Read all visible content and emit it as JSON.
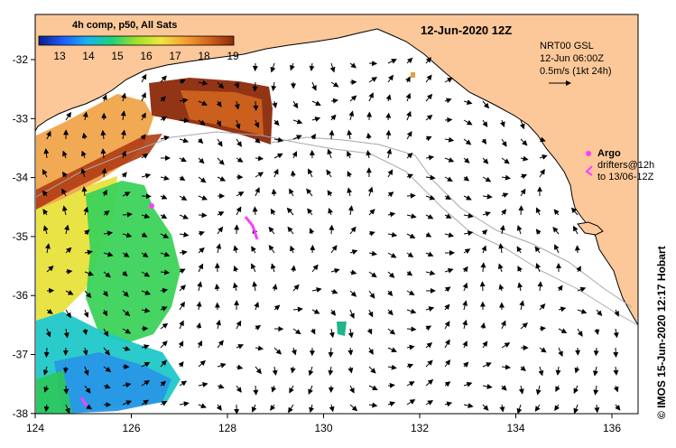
{
  "title": "12-Jun-2020 12Z",
  "legend": {
    "title": "4h comp, p50, All Sats",
    "ticks": [
      "13",
      "14",
      "15",
      "16",
      "17",
      "18",
      "19"
    ],
    "gradient": [
      "#08208c",
      "#1f5cff",
      "#18b4f0",
      "#1ed27a",
      "#9fe12a",
      "#f0e640",
      "#f5a030",
      "#d2641e",
      "#8c2a0a"
    ]
  },
  "currents": {
    "product": "NRT00 GSL",
    "time": "12-Jun 06:00Z",
    "scale_label": "0.5m/s (1kt 24h)"
  },
  "argo": {
    "label": "Argo",
    "drifters_line1": "drifters@12h",
    "drifters_line2": "to 13/06-12Z"
  },
  "axes": {
    "x_ticks": [
      "124",
      "126",
      "128",
      "130",
      "132",
      "134",
      "136"
    ],
    "y_ticks": [
      "-32",
      "-33",
      "-34",
      "-35",
      "-36",
      "-37",
      "-38"
    ]
  },
  "credit": "© IMOS 15-Jun-2020 12:17 Hobart",
  "colors": {
    "land": "#fcc899",
    "ocean": "#ffffff",
    "argo": "#ff3cff",
    "drifter": "#ff3cff",
    "isobath": "#a8a8a8"
  }
}
